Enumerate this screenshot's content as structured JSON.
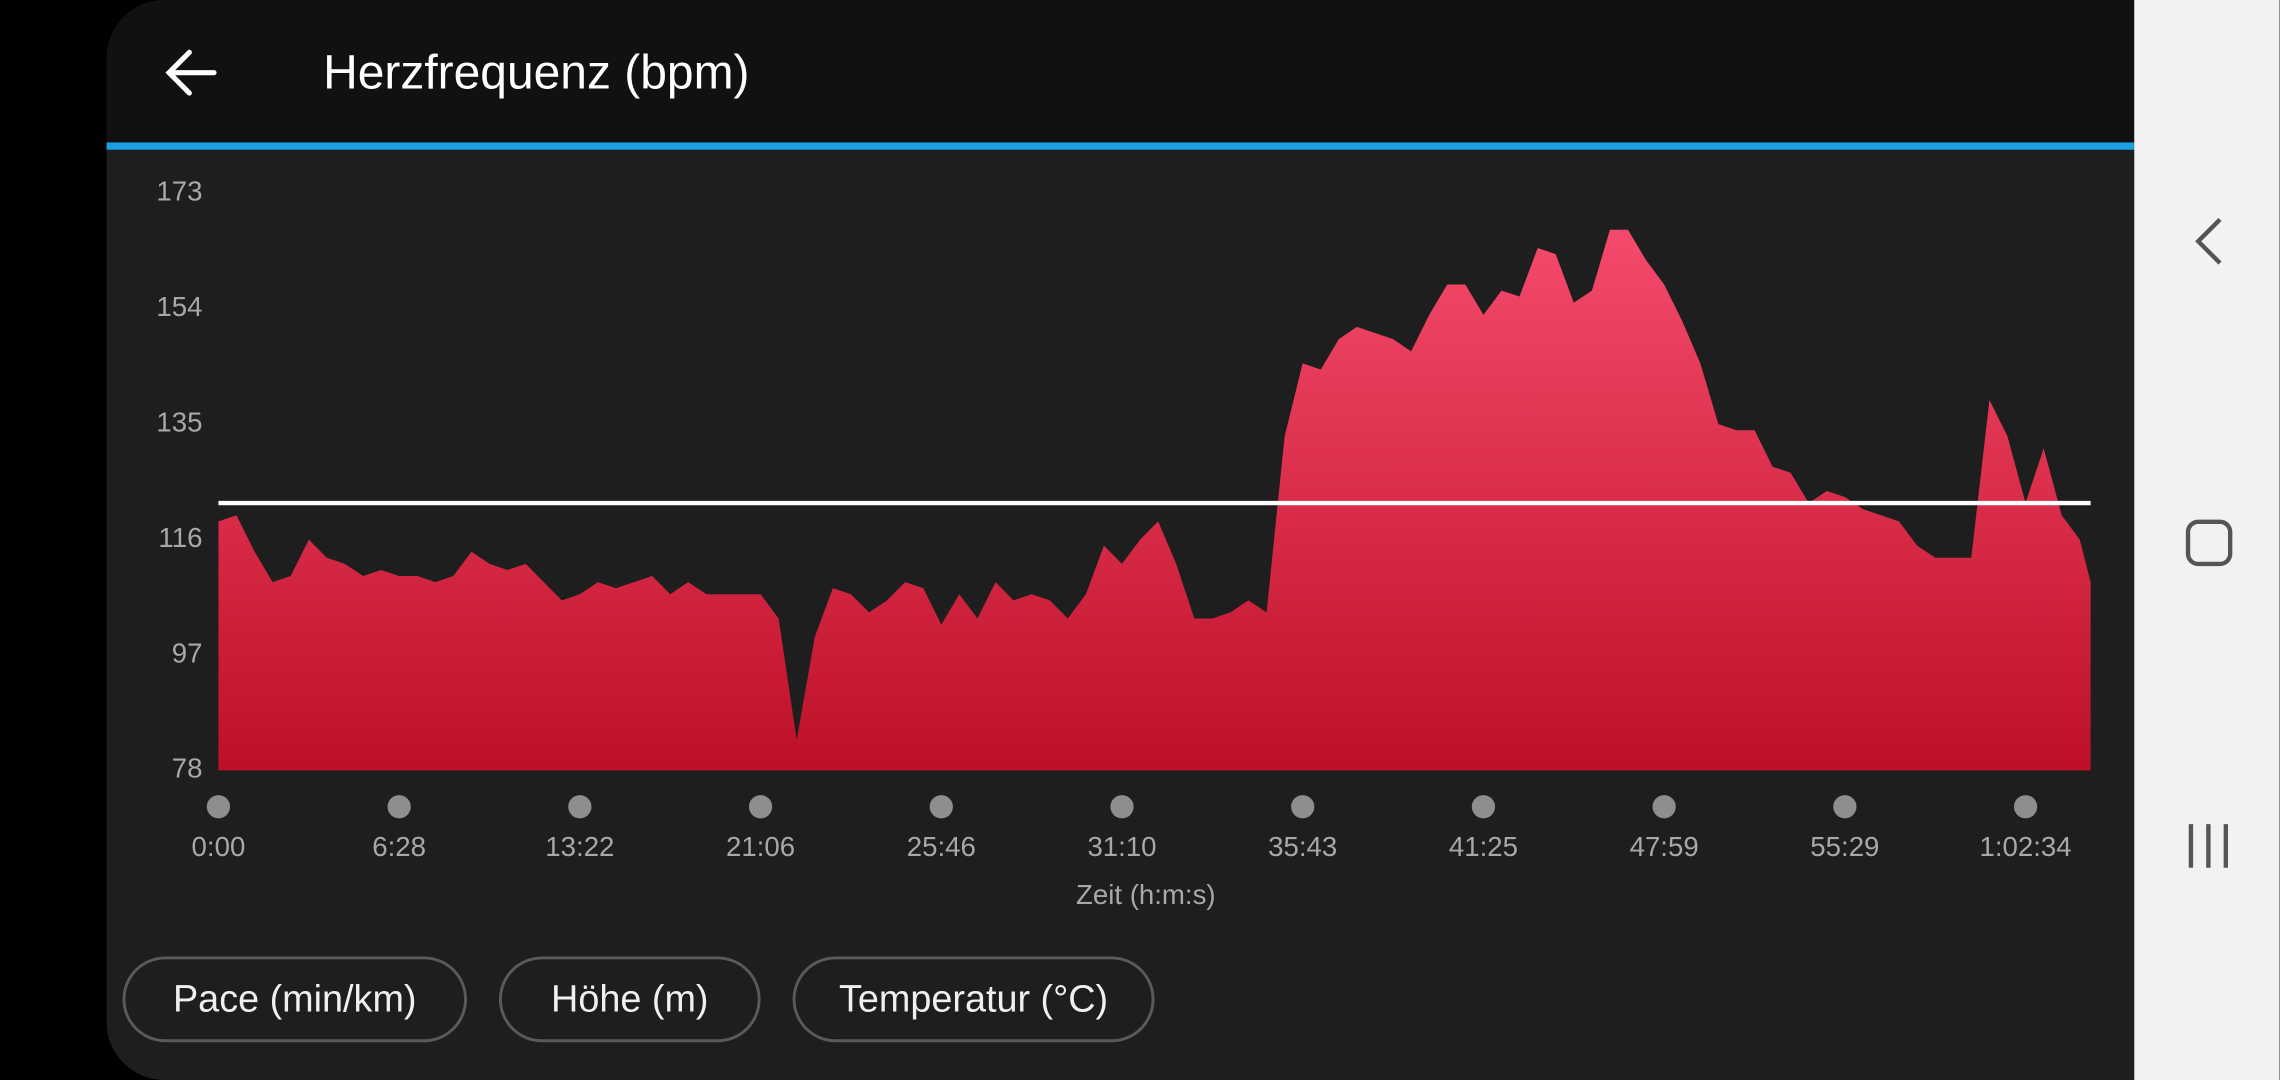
{
  "header": {
    "title": "Herzfrequenz (bpm)"
  },
  "chart_data": {
    "type": "area",
    "x_label": "Zeit (h:m:s)",
    "x": [
      0,
      0.1,
      0.2,
      0.3,
      0.4,
      0.5,
      0.6,
      0.7,
      0.8,
      0.9,
      1,
      1.1,
      1.2,
      1.3,
      1.4,
      1.5,
      1.6,
      1.7,
      1.8,
      1.9,
      2,
      2.1,
      2.2,
      2.3,
      2.4,
      2.5,
      2.6,
      2.7,
      2.8,
      2.9,
      3,
      3.1,
      3.2,
      3.3,
      3.4,
      3.5,
      3.6,
      3.7,
      3.8,
      3.9,
      4,
      4.1,
      4.2,
      4.3,
      4.4,
      4.5,
      4.6,
      4.7,
      4.8,
      4.9,
      5,
      5.1,
      5.2,
      5.3,
      5.4,
      5.5,
      5.6,
      5.7,
      5.8,
      5.9,
      6,
      6.1,
      6.2,
      6.3,
      6.4,
      6.5,
      6.6,
      6.7,
      6.8,
      6.9,
      7,
      7.1,
      7.2,
      7.3,
      7.4,
      7.5,
      7.6,
      7.7,
      7.8,
      7.9,
      8,
      8.1,
      8.2,
      8.3,
      8.4,
      8.5,
      8.6,
      8.7,
      8.8,
      8.9,
      9,
      9.1,
      9.2,
      9.3,
      9.4,
      9.5,
      9.6,
      9.7,
      9.8,
      9.9,
      10,
      10.1,
      10.2,
      10.3,
      10.36
    ],
    "values": [
      119,
      120,
      114,
      109,
      110,
      116,
      113,
      112,
      110,
      111,
      110,
      110,
      109,
      110,
      114,
      112,
      111,
      112,
      109,
      106,
      107,
      109,
      108,
      109,
      110,
      107,
      109,
      107,
      107,
      107,
      107,
      103,
      83,
      100,
      108,
      107,
      104,
      106,
      109,
      108,
      102,
      107,
      103,
      109,
      106,
      107,
      106,
      103,
      107,
      115,
      112,
      116,
      119,
      112,
      103,
      103,
      104,
      106,
      104,
      133,
      145,
      144,
      149,
      151,
      150,
      149,
      147,
      153,
      158,
      158,
      153,
      157,
      156,
      164,
      163,
      155,
      157,
      167,
      167,
      162,
      158,
      152,
      145,
      135,
      134,
      134,
      128,
      127,
      122,
      124,
      123,
      121,
      120,
      119,
      115,
      113,
      113,
      113,
      139,
      133,
      122,
      131,
      120,
      116,
      109
    ],
    "xlim": [
      0,
      10.36
    ],
    "ylim": [
      78,
      173
    ],
    "yticks": [
      78,
      97,
      116,
      135,
      154,
      173
    ],
    "xticks": [
      {
        "value": 0,
        "label": "0:00"
      },
      {
        "value": 1,
        "label": "6:28"
      },
      {
        "value": 2,
        "label": "13:22"
      },
      {
        "value": 3,
        "label": "21:06"
      },
      {
        "value": 4,
        "label": "25:46"
      },
      {
        "value": 5,
        "label": "31:10"
      },
      {
        "value": 6,
        "label": "35:43"
      },
      {
        "value": 7,
        "label": "41:25"
      },
      {
        "value": 8,
        "label": "47:59"
      },
      {
        "value": 9,
        "label": "55:29"
      },
      {
        "value": 10,
        "label": "1:02:34"
      }
    ],
    "reference_line": 122,
    "color_top": "#f54a6c",
    "color_bottom": "#bd1028",
    "reference_color": "#ffffff"
  },
  "buttons": [
    "Pace (min/km)",
    "Höhe (m)",
    "Temperatur (°C)"
  ]
}
